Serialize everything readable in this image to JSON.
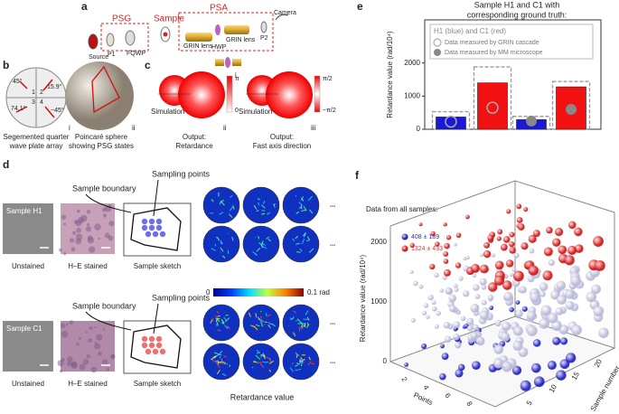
{
  "a": {
    "label": "a",
    "psg": "PSG",
    "sample": "Sample",
    "psa": "PSA",
    "source": "Source",
    "p1": "P1",
    "fqwp": "FQWP",
    "grin1": "GRIN lens",
    "hwp": "HWP",
    "grin2": "GRIN lens",
    "p2": "P2",
    "camera": "Camera",
    "inset": "i"
  },
  "b": {
    "label": "b",
    "angles": [
      "45°",
      "15.9°",
      "74.1°",
      "−45°"
    ],
    "cells": [
      "1",
      "2",
      "3",
      "4"
    ],
    "caption_i": [
      "Segemented quarter",
      "wave plate array"
    ],
    "tag_i": "i",
    "caption_ii": [
      "Poincaré sphere",
      "showing PSG states"
    ],
    "tag_ii": "ii"
  },
  "c": {
    "label": "c",
    "sim_ii": "Simulation",
    "out_ii": [
      "Output:",
      "Retardance"
    ],
    "scale_ii": [
      "π",
      "0"
    ],
    "tag_ii": "ii",
    "sim_iii": "Simulation",
    "out_iii": [
      "Output:",
      "Fast axis direction"
    ],
    "scale_iii": [
      "π/2",
      "−π/2"
    ],
    "tag_iii": "iii"
  },
  "d": {
    "label": "d",
    "rows": [
      {
        "sample": "Sample H1",
        "unstained": "Unstained",
        "he": "H–E stained",
        "sketch": "Sample sketch",
        "boundary": "Sample boundary",
        "points": "Sampling points",
        "more": [
          "•••",
          "•••"
        ]
      },
      {
        "sample": "Sample C1",
        "unstained": "Unstained",
        "he": "H–E stained",
        "sketch": "Sample sketch",
        "boundary": "Sample boundary",
        "points": "Sampling points",
        "more": [
          "•••",
          "•••"
        ]
      }
    ],
    "colorbar": [
      "0",
      "0.1 rad"
    ],
    "caption": "Retardance value"
  },
  "e": {
    "label": "e",
    "title": [
      "Sample H1 and C1 with",
      "corresponding ground truth:"
    ],
    "ylabel": "Retardance value (rad/10⁴)",
    "ylim": [
      0,
      3300
    ],
    "yticks": [
      0,
      1000,
      2000
    ],
    "legend": [
      "H1 (blue) and C1 (red)",
      "Data measured by GRIN cascade",
      "Data measured by MM microscope"
    ],
    "colors": [
      "#1a1ad6",
      "#f21010",
      "#1a1ad6",
      "#f21010"
    ],
    "values": [
      370,
      1400,
      290,
      1280
    ],
    "truth": [
      530,
      1880,
      390,
      1440
    ],
    "grin": [
      230,
      650,
      null,
      null
    ],
    "mm": [
      null,
      null,
      250,
      600
    ]
  },
  "f": {
    "label": "f",
    "title": "Data from all samples:",
    "stats": [
      "408 ± 189",
      "1324 ± 433"
    ],
    "zlabel": "Retardance value (rad/10⁴)",
    "zticks": [
      0,
      1000,
      2000
    ],
    "xlabel": "Points",
    "xticks": [
      2,
      4,
      6,
      8
    ],
    "ylabel": "Sample number",
    "yticks": [
      5,
      10,
      15,
      20
    ]
  }
}
